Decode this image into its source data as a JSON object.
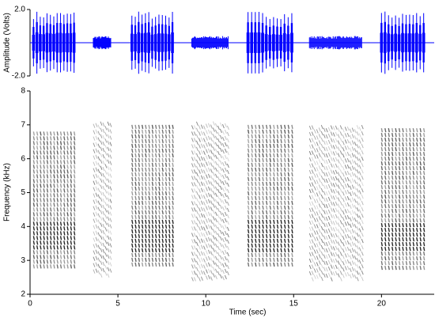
{
  "chart_data": [
    {
      "type": "waveform",
      "ylabel": "Amplitude (Volts)",
      "ylim": [
        -2,
        2
      ],
      "yticks": [
        {
          "value": 2,
          "label": "2.0"
        },
        {
          "value": -2,
          "label": "-2.0"
        }
      ],
      "xlim": [
        0,
        23
      ],
      "color": "#0000ff",
      "segments": [
        {
          "start": 0.1,
          "end": 2.6,
          "amplitude": 1.9,
          "pulses": 13
        },
        {
          "start": 3.6,
          "end": 4.6,
          "amplitude": 0.4,
          "pulses": null
        },
        {
          "start": 5.7,
          "end": 8.2,
          "amplitude": 1.9,
          "pulses": 13
        },
        {
          "start": 9.2,
          "end": 11.3,
          "amplitude": 0.4,
          "pulses": null
        },
        {
          "start": 12.3,
          "end": 15.0,
          "amplitude": 1.9,
          "pulses": 13
        },
        {
          "start": 15.9,
          "end": 18.9,
          "amplitude": 0.4,
          "pulses": null
        },
        {
          "start": 19.9,
          "end": 22.5,
          "amplitude": 1.9,
          "pulses": 13
        }
      ]
    },
    {
      "type": "spectrogram",
      "xlabel": "Time (sec)",
      "ylabel": "Frequency (kHz)",
      "xlim": [
        0,
        23
      ],
      "xticks": [
        0,
        5,
        10,
        15,
        20
      ],
      "ylim": [
        2,
        8
      ],
      "yticks": [
        2,
        3,
        4,
        5,
        6,
        7,
        8
      ],
      "segments": [
        {
          "start": 0.1,
          "end": 2.6,
          "low": 2.8,
          "high": 6.8,
          "pulses": 13
        },
        {
          "start": 3.6,
          "end": 4.6,
          "low": 2.6,
          "high": 7.1,
          "pulses": null
        },
        {
          "start": 5.7,
          "end": 8.2,
          "low": 2.8,
          "high": 7.0,
          "pulses": 13
        },
        {
          "start": 9.2,
          "end": 11.3,
          "low": 2.5,
          "high": 7.1,
          "pulses": null
        },
        {
          "start": 12.3,
          "end": 15.0,
          "low": 2.8,
          "high": 7.0,
          "pulses": 13
        },
        {
          "start": 15.9,
          "end": 18.9,
          "low": 2.5,
          "high": 7.0,
          "pulses": null
        },
        {
          "start": 19.9,
          "end": 22.5,
          "low": 2.8,
          "high": 6.9,
          "pulses": 13
        }
      ]
    }
  ]
}
